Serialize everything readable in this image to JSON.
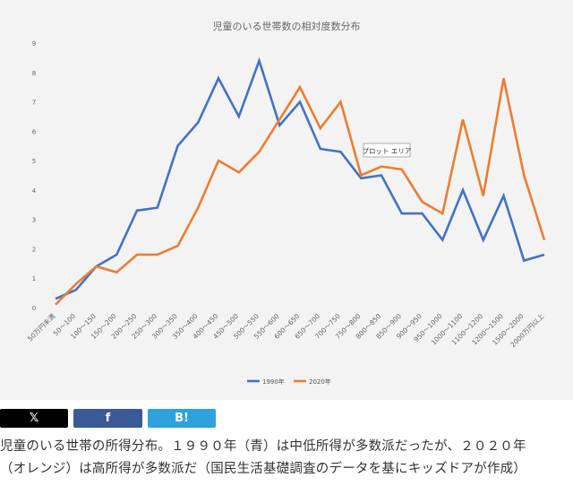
{
  "chart_data": {
    "type": "line",
    "title": "児童のいる世帯数の相対度数分布",
    "xlabel": "",
    "ylabel": "",
    "ylim": [
      0,
      9
    ],
    "yticks": [
      0,
      1,
      2,
      3,
      4,
      5,
      6,
      7,
      8,
      9
    ],
    "grid": false,
    "legend_placement": "bottom",
    "categories": [
      "50万円未満",
      "50〜100",
      "100〜150",
      "150〜200",
      "200〜250",
      "250〜300",
      "300〜350",
      "350〜400",
      "400〜450",
      "450〜500",
      "500〜550",
      "550〜600",
      "600〜650",
      "650〜700",
      "700〜750",
      "750〜800",
      "800〜850",
      "850〜900",
      "900〜950",
      "950〜1000",
      "1000〜1100",
      "1100〜1200",
      "1200〜1500",
      "1500〜2000",
      "2000万円以上"
    ],
    "series": [
      {
        "name": "1990年",
        "color": "#4472c4",
        "values": [
          0.3,
          0.6,
          1.4,
          1.8,
          3.3,
          3.4,
          5.5,
          6.3,
          7.8,
          6.5,
          8.4,
          6.2,
          7.0,
          5.4,
          5.3,
          4.4,
          4.5,
          3.2,
          3.2,
          2.3,
          4.0,
          2.3,
          3.8,
          1.6,
          1.8
        ]
      },
      {
        "name": "2020年",
        "color": "#ed7d31",
        "values": [
          0.1,
          0.8,
          1.4,
          1.2,
          1.8,
          1.8,
          2.1,
          3.4,
          5.0,
          4.6,
          5.3,
          6.4,
          7.5,
          6.1,
          7.0,
          4.5,
          4.8,
          4.7,
          3.6,
          3.2,
          6.4,
          3.8,
          7.8,
          4.5,
          2.3
        ]
      }
    ],
    "annotation": "プロット エリア"
  },
  "share": {
    "x_label": "𝕏",
    "facebook_label": "f",
    "hatena_label": "B!"
  },
  "caption": {
    "line1": "児童のいる世帯の所得分布。１９９０年（青）は中低所得が多数派だったが、２０２０年",
    "line2": "（オレンジ）は高所得が多数派だ（国民生活基礎調査のデータを基にキッズドアが作成）"
  }
}
